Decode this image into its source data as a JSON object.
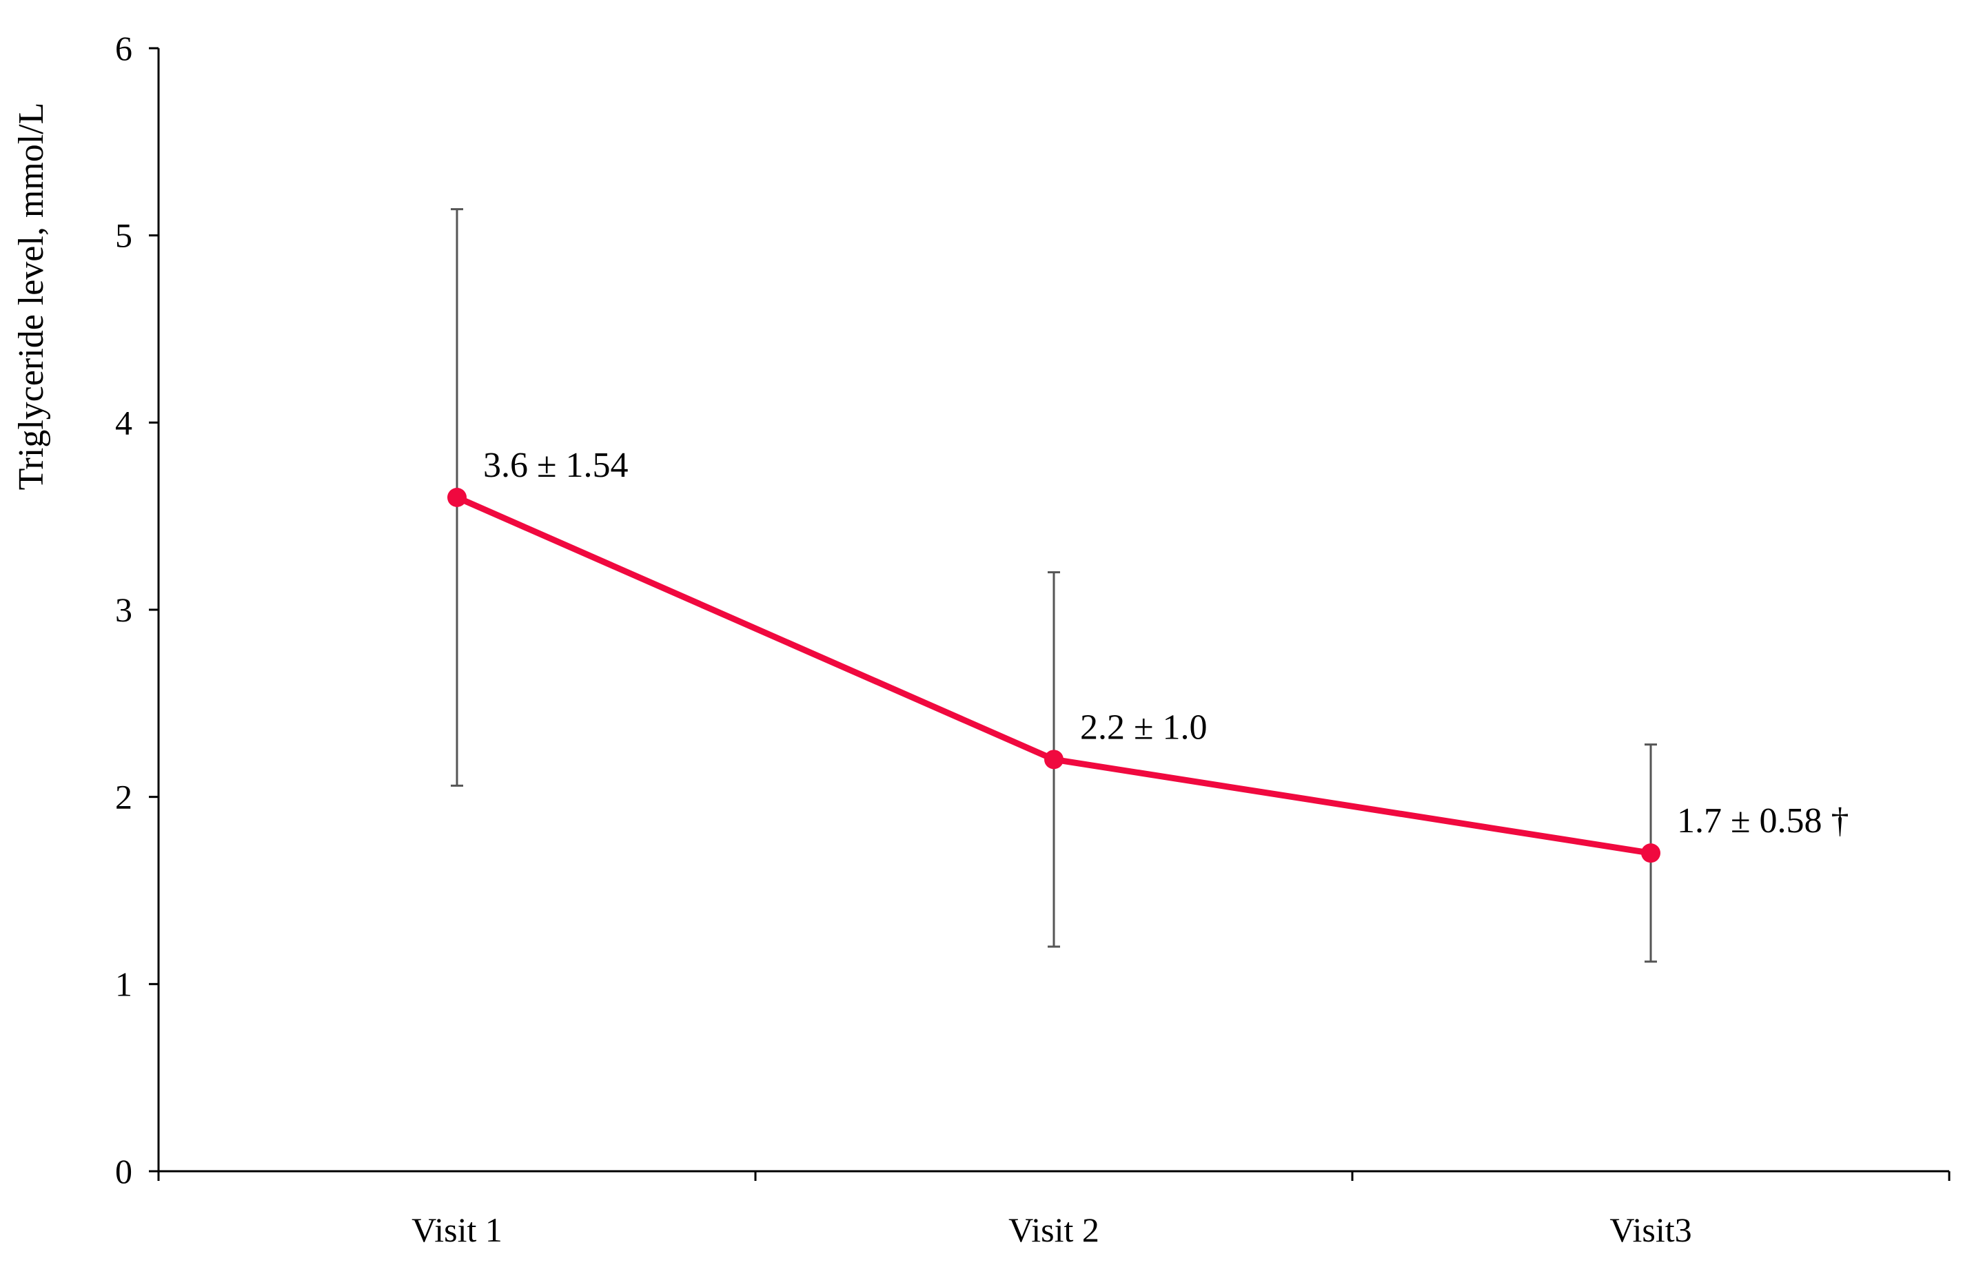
{
  "chart_data": {
    "type": "line",
    "title": "",
    "xlabel": "",
    "ylabel": "Triglyceride level, mmol/L",
    "categories": [
      "Visit 1",
      "Visit 2",
      "Visit3"
    ],
    "series": [
      {
        "values": [
          3.6,
          2.2,
          1.7
        ],
        "errors": [
          1.54,
          1.0,
          0.58
        ],
        "labels": [
          "3.6 ± 1.54",
          "2.2 ± 1.0",
          "1.7 ± 0.58 †"
        ],
        "color": "#f0093f"
      }
    ],
    "ylim": [
      0,
      6
    ],
    "yticks": [
      0,
      1,
      2,
      3,
      4,
      5,
      6
    ],
    "grid": false,
    "legend": "none",
    "error_bar_color": "#555555",
    "axis_color": "#000000"
  }
}
